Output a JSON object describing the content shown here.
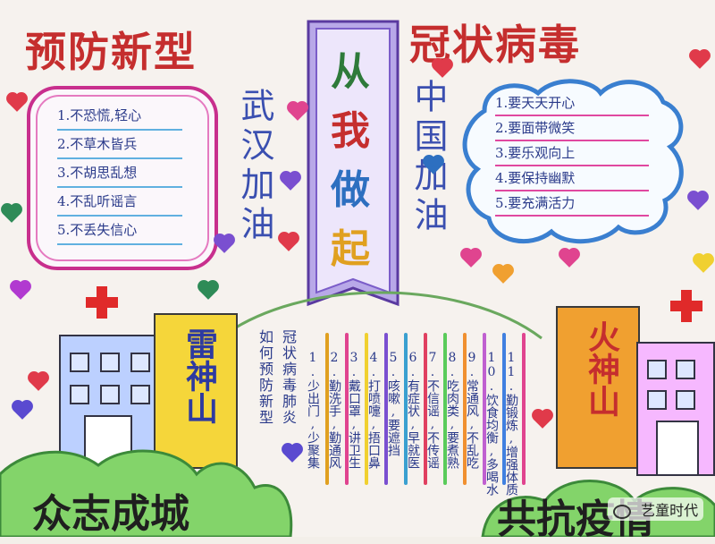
{
  "title": {
    "left": "预防新型",
    "right": "冠状病毒"
  },
  "banner": {
    "text": [
      "从",
      "我",
      "做",
      "起"
    ]
  },
  "slogans": {
    "left": "武汉加油",
    "right": "中国加油"
  },
  "left_list": [
    "1.不恐慌,轻心",
    "2.不草木皆兵",
    "3.不胡思乱想",
    "4.不乱听谣言",
    "5.不丢失信心"
  ],
  "right_list": [
    "1.要天天开心",
    "2.要面带微笑",
    "3.要乐观向上",
    "4.要保持幽默",
    "5.要充满活力"
  ],
  "hospitals": {
    "left": "雷神山",
    "right": "火神山"
  },
  "middle_heading": [
    "如何预防新型",
    "冠状病毒肺炎"
  ],
  "middle_list": [
    "1.少出门,少聚集",
    "2.勤洗手,勤通风",
    "3.戴口罩,讲卫生",
    "4.打喷嚏,捂口鼻",
    "5.咳嗽,要遮挡",
    "6.有症状,早就医",
    "7.不信谣,不传谣",
    "8.吃肉类,要煮熟",
    "9.常通风,不乱吃",
    "10.饮食均衡,多喝水",
    "11.勤锻炼,增强体质"
  ],
  "bottom": {
    "left": "众志成城",
    "right": "共抗疫情"
  },
  "watermark": "艺童时代",
  "colors": {
    "title_red": "#c52e2e",
    "title_green": "#2e7a3a",
    "title_blue": "#2d6fc0",
    "banner_purple": "#5a3aa0",
    "pink": "#e0448f",
    "blue": "#3a7fd0",
    "hospital_yellow": "#f5d63a",
    "hospital_orange": "#f0a030",
    "green_hill": "#7bcf63"
  }
}
